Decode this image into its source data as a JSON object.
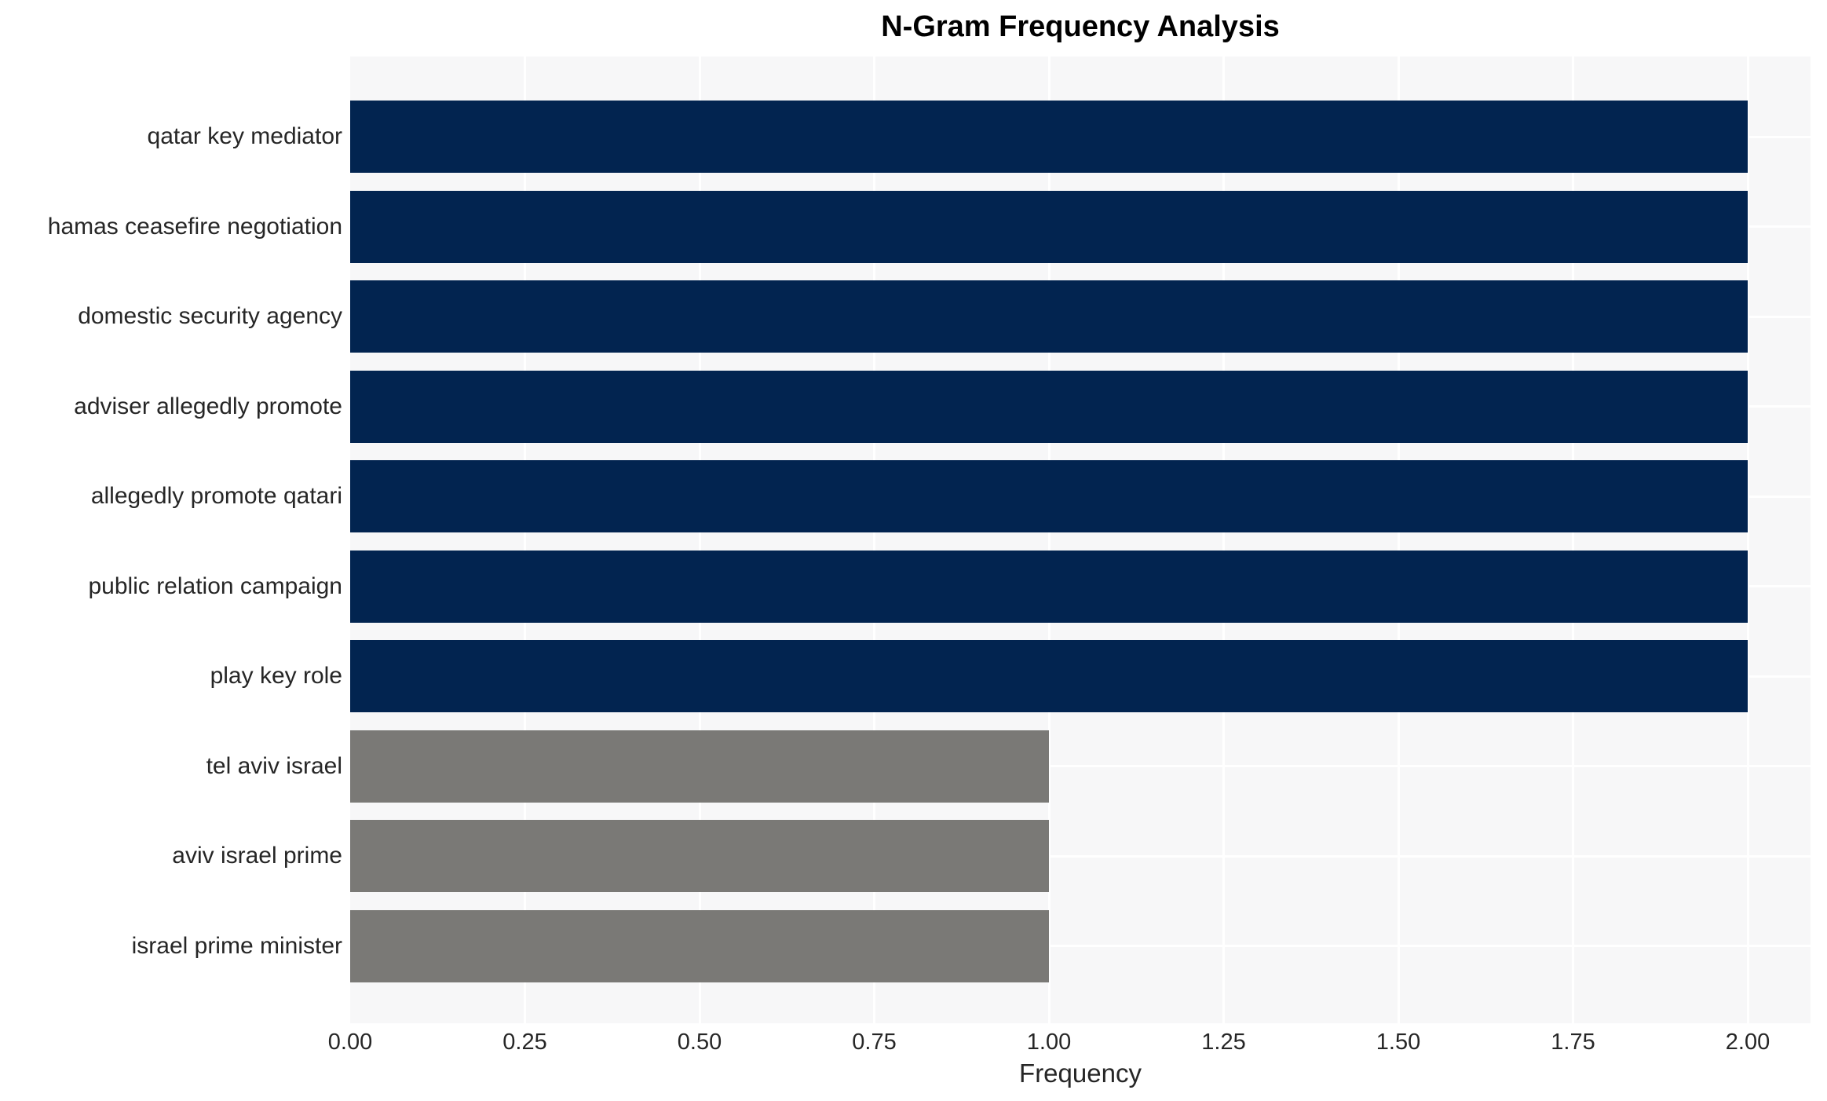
{
  "title": "N-Gram Frequency Analysis",
  "chart_data": {
    "type": "bar",
    "orientation": "horizontal",
    "title": "N-Gram Frequency Analysis",
    "xlabel": "Frequency",
    "ylabel": "",
    "categories": [
      "qatar key mediator",
      "hamas ceasefire negotiation",
      "domestic security agency",
      "adviser allegedly promote",
      "allegedly promote qatari",
      "public relation campaign",
      "play key role",
      "tel aviv israel",
      "aviv israel prime",
      "israel prime minister"
    ],
    "values": [
      2,
      2,
      2,
      2,
      2,
      2,
      2,
      1,
      1,
      1
    ],
    "bar_colors": [
      "#022450",
      "#022450",
      "#022450",
      "#022450",
      "#022450",
      "#022450",
      "#022450",
      "#7a7976",
      "#7a7976",
      "#7a7976"
    ],
    "xtick_labels": [
      "0.00",
      "0.25",
      "0.50",
      "0.75",
      "1.00",
      "1.25",
      "1.50",
      "1.75",
      "2.00"
    ],
    "xtick_values": [
      0,
      0.25,
      0.5,
      0.75,
      1.0,
      1.25,
      1.5,
      1.75,
      2.0
    ],
    "xlim": [
      0,
      2.09
    ],
    "grid": true,
    "legend": "none",
    "colors": {
      "bar_high": "#022450",
      "bar_low": "#7a7976",
      "plot_background": "#f7f7f8",
      "gridline": "#ffffff",
      "tick_text": "#262626",
      "title_text": "#000000"
    }
  }
}
